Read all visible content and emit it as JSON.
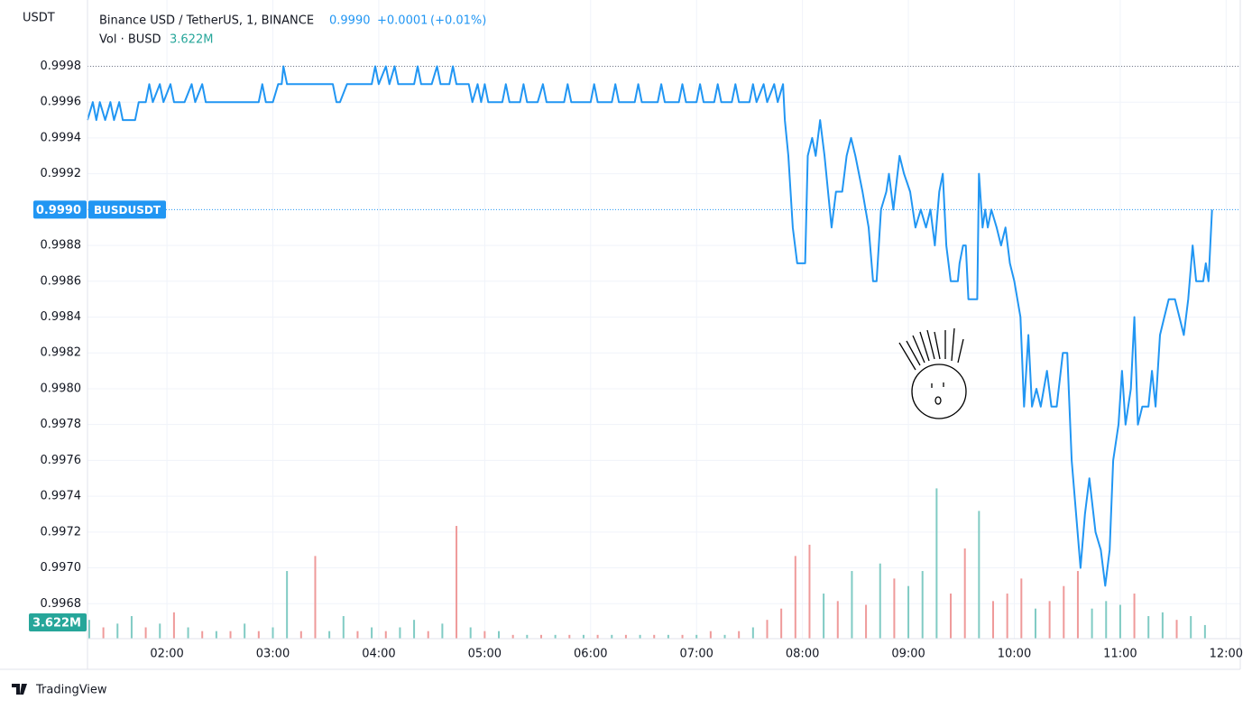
{
  "chart_data": {
    "type": "line",
    "axis_title": "USDT",
    "legend": {
      "symbol": "Binance USD / TetherUS, 1, BINANCE",
      "last": {
        "value": 0.999,
        "label": "0.9990"
      },
      "change": {
        "value": 0.0001,
        "label": "+0.0001"
      },
      "change_pct": {
        "value": 0.01,
        "label": "(+0.01%)"
      }
    },
    "ticker": "BUSDUSDT",
    "brand": "TradingView",
    "xlim": [
      75,
      728
    ],
    "ylim": [
      0.996605,
      1.00017
    ],
    "grid": true,
    "high_line": 0.9998,
    "xticks": [
      {
        "value": 120,
        "label": "02:00"
      },
      {
        "value": 180,
        "label": "03:00"
      },
      {
        "value": 240,
        "label": "04:00"
      },
      {
        "value": 300,
        "label": "05:00"
      },
      {
        "value": 360,
        "label": "06:00"
      },
      {
        "value": 420,
        "label": "07:00"
      },
      {
        "value": 480,
        "label": "08:00"
      },
      {
        "value": 540,
        "label": "09:00"
      },
      {
        "value": 600,
        "label": "10:00"
      },
      {
        "value": 660,
        "label": "11:00"
      },
      {
        "value": 720,
        "label": "12:00"
      }
    ],
    "yticks": [
      {
        "value": 0.9968,
        "label": "0.9968"
      },
      {
        "value": 0.997,
        "label": "0.9970"
      },
      {
        "value": 0.9972,
        "label": "0.9972"
      },
      {
        "value": 0.9974,
        "label": "0.9974"
      },
      {
        "value": 0.9976,
        "label": "0.9976"
      },
      {
        "value": 0.9978,
        "label": "0.9978"
      },
      {
        "value": 0.998,
        "label": "0.9980"
      },
      {
        "value": 0.9982,
        "label": "0.9982"
      },
      {
        "value": 0.9984,
        "label": "0.9984"
      },
      {
        "value": 0.9986,
        "label": "0.9986"
      },
      {
        "value": 0.9988,
        "label": "0.9988"
      },
      {
        "value": 0.9992,
        "label": "0.9992"
      },
      {
        "value": 0.9994,
        "label": "0.9994"
      },
      {
        "value": 0.9996,
        "label": "0.9996"
      },
      {
        "value": 0.9998,
        "label": "0.9998"
      }
    ],
    "series": [
      {
        "name": "BUSDUSDT",
        "color": "#2196f3",
        "x": [
          75,
          78,
          80,
          82,
          85,
          88,
          90,
          93,
          95,
          102,
          104,
          108,
          110,
          112,
          116,
          118,
          122,
          124,
          130,
          134,
          136,
          140,
          142,
          150,
          172,
          174,
          176,
          180,
          183,
          185,
          186,
          188,
          200,
          214,
          216,
          218,
          222,
          236,
          238,
          240,
          244,
          246,
          249,
          251,
          260,
          262,
          264,
          270,
          273,
          275,
          280,
          282,
          284,
          291,
          293,
          296,
          298,
          300,
          302,
          310,
          312,
          314,
          320,
          322,
          324,
          330,
          333,
          335,
          345,
          347,
          349,
          360,
          362,
          364,
          372,
          374,
          376,
          385,
          387,
          389,
          398,
          400,
          402,
          410,
          412,
          414,
          420,
          422,
          424,
          430,
          432,
          434,
          440,
          442,
          444,
          450,
          452,
          454,
          458,
          460,
          464,
          466,
          469,
          470,
          472,
          474.5,
          477,
          481.5,
          483,
          485.5,
          487.5,
          490,
          492.5,
          496.5,
          499,
          502.5,
          505,
          507.5,
          510,
          514,
          517.5,
          520,
          522,
          524.5,
          527.5,
          529,
          531.5,
          535,
          537.5,
          541,
          544,
          547,
          550,
          552.5,
          555,
          557.5,
          559.5,
          561.5,
          564,
          568,
          569,
          571,
          572.5,
          574,
          579,
          580,
          582,
          583.5,
          585,
          587,
          590,
          592.5,
          595,
          597.5,
          600,
          603.5,
          605.5,
          608,
          610,
          612.5,
          615,
          618.5,
          621,
          624,
          627.5,
          630,
          632.5,
          635,
          637.5,
          640,
          642.5,
          646,
          649,
          651.5,
          654,
          656,
          659,
          661,
          663,
          666,
          668,
          670,
          672.5,
          676,
          678,
          680,
          682.5,
          685,
          687.5,
          691,
          693.5,
          696,
          698.5,
          701,
          703,
          707,
          708.5,
          710,
          712
        ],
        "values": [
          0.9995,
          0.9996,
          0.9995,
          0.9996,
          0.9995,
          0.9996,
          0.9995,
          0.9996,
          0.9995,
          0.9995,
          0.9996,
          0.9996,
          0.9997,
          0.9996,
          0.9997,
          0.9996,
          0.9997,
          0.9996,
          0.9996,
          0.9997,
          0.9996,
          0.9997,
          0.9996,
          0.9996,
          0.9996,
          0.9997,
          0.9996,
          0.9996,
          0.9997,
          0.9997,
          0.9998,
          0.9997,
          0.9997,
          0.9997,
          0.9996,
          0.9996,
          0.9997,
          0.9997,
          0.9998,
          0.9997,
          0.9998,
          0.9997,
          0.9998,
          0.9997,
          0.9997,
          0.9998,
          0.9997,
          0.9997,
          0.9998,
          0.9997,
          0.9997,
          0.9998,
          0.9997,
          0.9997,
          0.9996,
          0.9997,
          0.9996,
          0.9997,
          0.9996,
          0.9996,
          0.9997,
          0.9996,
          0.9996,
          0.9997,
          0.9996,
          0.9996,
          0.9997,
          0.9996,
          0.9996,
          0.9997,
          0.9996,
          0.9996,
          0.9997,
          0.9996,
          0.9996,
          0.9997,
          0.9996,
          0.9996,
          0.9997,
          0.9996,
          0.9996,
          0.9997,
          0.9996,
          0.9996,
          0.9997,
          0.9996,
          0.9996,
          0.9997,
          0.9996,
          0.9996,
          0.9997,
          0.9996,
          0.9996,
          0.9997,
          0.9996,
          0.9996,
          0.9997,
          0.9996,
          0.9997,
          0.9996,
          0.9997,
          0.9996,
          0.9997,
          0.9995,
          0.9993,
          0.9989,
          0.9987,
          0.9987,
          0.9993,
          0.9994,
          0.9993,
          0.9995,
          0.9993,
          0.9989,
          0.9991,
          0.9991,
          0.9993,
          0.9994,
          0.9993,
          0.9991,
          0.9989,
          0.9986,
          0.9986,
          0.999,
          0.9991,
          0.9992,
          0.999,
          0.9993,
          0.9992,
          0.9991,
          0.9989,
          0.999,
          0.9989,
          0.999,
          0.9988,
          0.9991,
          0.9992,
          0.9988,
          0.9986,
          0.9986,
          0.9987,
          0.9988,
          0.9988,
          0.9985,
          0.9985,
          0.9992,
          0.9989,
          0.999,
          0.9989,
          0.999,
          0.9989,
          0.9988,
          0.9989,
          0.9987,
          0.9986,
          0.9984,
          0.9979,
          0.9983,
          0.9979,
          0.998,
          0.9979,
          0.9981,
          0.9979,
          0.9979,
          0.9982,
          0.9982,
          0.9976,
          0.9973,
          0.997,
          0.9973,
          0.9975,
          0.9972,
          0.9971,
          0.9969,
          0.9971,
          0.9976,
          0.9978,
          0.9981,
          0.9978,
          0.998,
          0.9984,
          0.9978,
          0.9979,
          0.9979,
          0.9981,
          0.9979,
          0.9983,
          0.9984,
          0.9985,
          0.9985,
          0.9984,
          0.9983,
          0.9985,
          0.9988,
          0.9986,
          0.9986,
          0.9987,
          0.9986,
          0.999
        ]
      }
    ],
    "volume": {
      "name": "Vol · BUSD",
      "vlim": [
        0,
        170000000
      ],
      "last": {
        "value": 3622000,
        "label": "3.622M"
      },
      "x": [
        76,
        84,
        92,
        100,
        108,
        116,
        124,
        132,
        140,
        148,
        156,
        164,
        172,
        180,
        188,
        196,
        204,
        212,
        220,
        228,
        236,
        244,
        252,
        260,
        268,
        276,
        284,
        292,
        300,
        308,
        316,
        324,
        332,
        340,
        348,
        356,
        364,
        372,
        380,
        388,
        396,
        404,
        412,
        420,
        428,
        436,
        444,
        452,
        460,
        468,
        476,
        484,
        492,
        500,
        508,
        516,
        524,
        532,
        540,
        548,
        556,
        564,
        572,
        580,
        588,
        596,
        604,
        612,
        620,
        628,
        636,
        644,
        652,
        660,
        668,
        676,
        684,
        692,
        700,
        708
      ],
      "values": [
        5000000,
        3000000,
        4000000,
        6000000,
        3000000,
        4000000,
        7000000,
        3000000,
        2000000,
        2000000,
        2000000,
        4000000,
        2000000,
        3000000,
        18000000,
        2000000,
        22000000,
        2000000,
        6000000,
        2000000,
        3000000,
        2000000,
        3000000,
        5000000,
        2000000,
        4000000,
        30000000,
        3000000,
        2000000,
        2000000,
        1000000,
        1000000,
        1000000,
        1000000,
        1000000,
        1000000,
        1000000,
        1000000,
        1000000,
        1000000,
        1000000,
        1000000,
        1000000,
        1000000,
        2000000,
        1000000,
        2000000,
        3000000,
        5000000,
        8000000,
        22000000,
        25000000,
        12000000,
        10000000,
        18000000,
        9000000,
        20000000,
        16000000,
        14000000,
        18000000,
        40000000,
        12000000,
        24000000,
        34000000,
        10000000,
        12000000,
        16000000,
        8000000,
        10000000,
        14000000,
        18000000,
        8000000,
        10000000,
        9000000,
        12000000,
        6000000,
        7000000,
        5000000,
        6000000,
        3622000
      ],
      "colors": [
        "#80cbc4",
        "#ef9a9a",
        "#80cbc4",
        "#80cbc4",
        "#ef9a9a",
        "#80cbc4",
        "#ef9a9a",
        "#80cbc4",
        "#ef9a9a",
        "#80cbc4",
        "#ef9a9a",
        "#80cbc4",
        "#ef9a9a",
        "#80cbc4",
        "#80cbc4",
        "#ef9a9a",
        "#ef9a9a",
        "#80cbc4",
        "#80cbc4",
        "#ef9a9a",
        "#80cbc4",
        "#ef9a9a",
        "#80cbc4",
        "#80cbc4",
        "#ef9a9a",
        "#80cbc4",
        "#ef9a9a",
        "#80cbc4",
        "#ef9a9a",
        "#80cbc4",
        "#ef9a9a",
        "#80cbc4",
        "#ef9a9a",
        "#80cbc4",
        "#ef9a9a",
        "#80cbc4",
        "#ef9a9a",
        "#80cbc4",
        "#ef9a9a",
        "#80cbc4",
        "#ef9a9a",
        "#80cbc4",
        "#ef9a9a",
        "#80cbc4",
        "#ef9a9a",
        "#80cbc4",
        "#ef9a9a",
        "#80cbc4",
        "#ef9a9a",
        "#ef9a9a",
        "#ef9a9a",
        "#ef9a9a",
        "#80cbc4",
        "#ef9a9a",
        "#80cbc4",
        "#ef9a9a",
        "#80cbc4",
        "#ef9a9a",
        "#80cbc4",
        "#80cbc4",
        "#80cbc4",
        "#ef9a9a",
        "#ef9a9a",
        "#80cbc4",
        "#ef9a9a",
        "#ef9a9a",
        "#ef9a9a",
        "#80cbc4",
        "#ef9a9a",
        "#ef9a9a",
        "#ef9a9a",
        "#80cbc4",
        "#80cbc4",
        "#80cbc4",
        "#ef9a9a",
        "#80cbc4",
        "#80cbc4",
        "#ef9a9a",
        "#80cbc4",
        "#80cbc4"
      ]
    }
  }
}
